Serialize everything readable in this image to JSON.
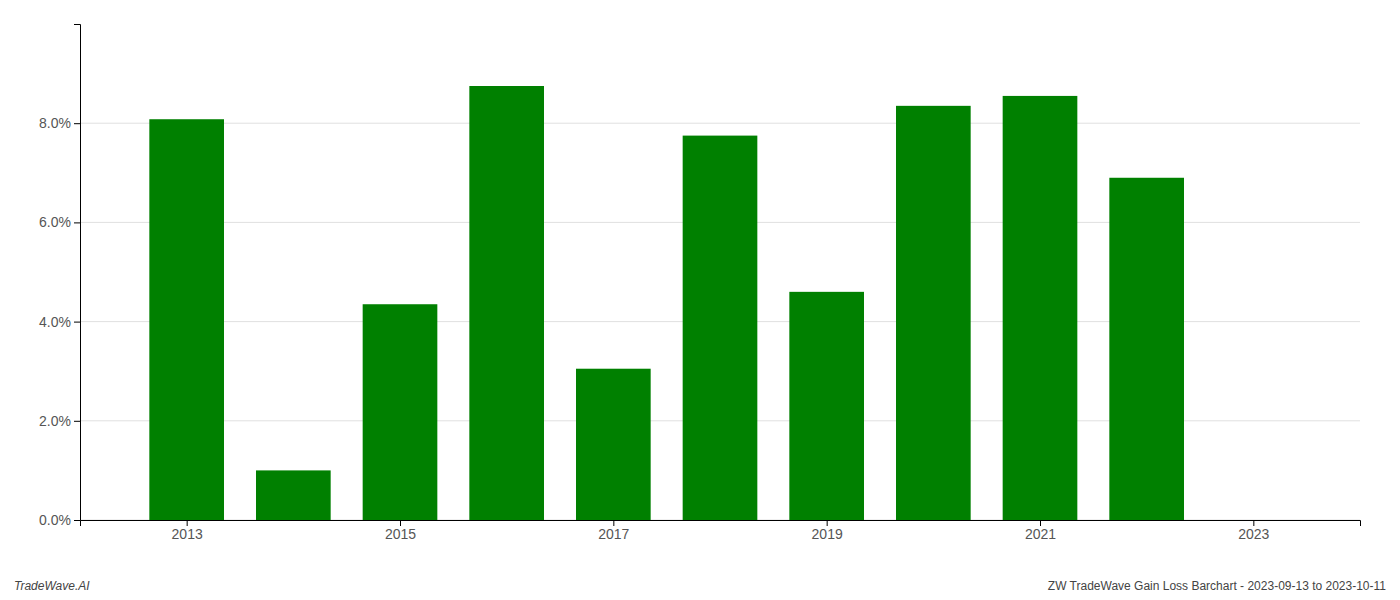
{
  "chart_data": {
    "type": "bar",
    "x": [
      2013,
      2014,
      2015,
      2016,
      2017,
      2018,
      2019,
      2020,
      2021,
      2022
    ],
    "values": [
      0.0808,
      0.01,
      0.0435,
      0.0875,
      0.0305,
      0.0775,
      0.046,
      0.0835,
      0.0855,
      0.069
    ],
    "color": "#008000",
    "xlim": [
      2012.0,
      2024.0
    ],
    "xticks": [
      2013,
      2015,
      2017,
      2019,
      2021,
      2023
    ],
    "ylim": [
      0,
      0.1
    ],
    "yticks": [
      {
        "value": 0.0,
        "label": "0.0%"
      },
      {
        "value": 0.02,
        "label": "2.0%"
      },
      {
        "value": 0.04,
        "label": "4.0%"
      },
      {
        "value": 0.06,
        "label": "6.0%"
      },
      {
        "value": 0.08,
        "label": "8.0%"
      }
    ],
    "grid": true,
    "annotations": [
      "TradeWave.AI",
      "ZW TradeWave Gain Loss Barchart - 2023-09-13 to 2023-10-11"
    ]
  }
}
